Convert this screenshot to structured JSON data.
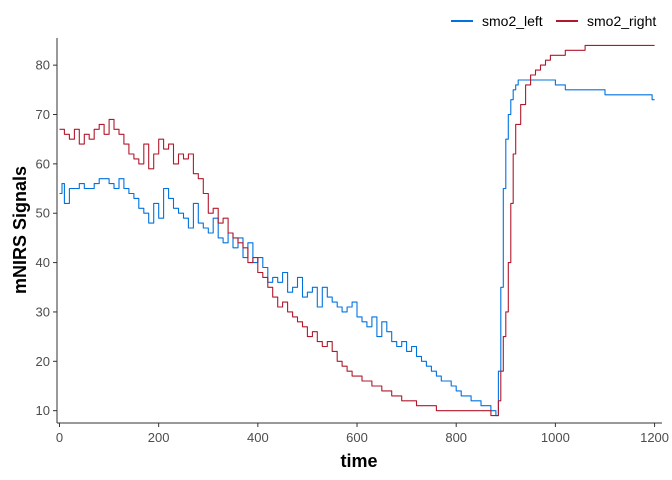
{
  "chart_data": {
    "type": "line",
    "title": "",
    "xlabel": "time",
    "ylabel": "mNIRS Signals",
    "xlim": [
      -5,
      1215
    ],
    "ylim": [
      7.5,
      85.5
    ],
    "x_ticks": [
      0,
      200,
      400,
      600,
      800,
      1000,
      1200
    ],
    "y_ticks": [
      10,
      20,
      30,
      40,
      50,
      60,
      70,
      80
    ],
    "grid": false,
    "legend_position": "top-right",
    "series": [
      {
        "name": "smo2_left",
        "color": "#0072e0",
        "x": [
          0,
          5,
          10,
          20,
          30,
          40,
          50,
          60,
          70,
          80,
          90,
          100,
          110,
          120,
          130,
          140,
          150,
          160,
          170,
          180,
          190,
          200,
          210,
          220,
          230,
          240,
          250,
          260,
          270,
          280,
          290,
          300,
          310,
          320,
          330,
          340,
          350,
          360,
          370,
          380,
          390,
          400,
          410,
          420,
          430,
          440,
          450,
          460,
          470,
          480,
          490,
          500,
          510,
          520,
          530,
          540,
          550,
          560,
          570,
          580,
          590,
          600,
          610,
          620,
          630,
          640,
          650,
          660,
          670,
          680,
          690,
          700,
          710,
          720,
          730,
          740,
          750,
          760,
          770,
          780,
          790,
          800,
          810,
          820,
          830,
          840,
          850,
          860,
          870,
          875,
          880,
          885,
          890,
          895,
          900,
          905,
          910,
          915,
          920,
          925,
          930,
          940,
          950,
          960,
          970,
          980,
          990,
          1000,
          1020,
          1040,
          1060,
          1080,
          1100,
          1120,
          1140,
          1160,
          1180,
          1190,
          1195,
          1200
        ],
        "values": [
          54,
          56,
          52,
          55,
          55,
          56,
          55,
          55,
          56,
          57,
          57,
          56,
          55,
          57,
          55,
          54,
          53,
          51,
          50,
          48,
          52,
          49,
          55,
          53,
          51,
          50,
          49,
          47,
          52,
          48,
          47,
          46,
          49,
          45,
          44,
          46,
          43,
          45,
          41,
          44,
          40,
          41,
          39,
          36,
          37,
          36,
          38,
          34,
          35,
          37,
          33,
          34,
          35,
          31,
          35,
          33,
          32,
          31,
          30,
          31,
          32,
          29,
          28,
          27,
          29,
          25,
          28,
          26,
          24,
          23,
          24,
          22,
          23,
          21,
          20,
          19,
          18,
          17,
          16,
          16,
          15,
          14,
          13,
          13,
          12,
          12,
          11,
          11,
          10,
          10,
          9,
          18,
          35,
          55,
          65,
          70,
          73,
          75,
          76,
          77,
          77,
          77,
          77,
          77,
          77,
          77,
          77,
          76,
          75,
          75,
          75,
          75,
          74,
          74,
          74,
          74,
          74,
          74,
          73,
          73
        ]
      },
      {
        "name": "smo2_right",
        "color": "#b2182b",
        "x": [
          0,
          10,
          20,
          30,
          40,
          50,
          60,
          70,
          80,
          90,
          100,
          110,
          120,
          130,
          140,
          150,
          160,
          170,
          180,
          190,
          200,
          210,
          220,
          230,
          240,
          250,
          260,
          270,
          280,
          290,
          300,
          310,
          320,
          330,
          340,
          350,
          360,
          370,
          380,
          390,
          400,
          410,
          420,
          430,
          440,
          450,
          460,
          470,
          480,
          490,
          500,
          510,
          520,
          530,
          540,
          550,
          560,
          570,
          580,
          590,
          600,
          610,
          620,
          630,
          640,
          650,
          660,
          670,
          680,
          690,
          700,
          710,
          720,
          730,
          740,
          750,
          760,
          770,
          780,
          790,
          800,
          810,
          820,
          830,
          840,
          850,
          860,
          870,
          880,
          885,
          890,
          895,
          900,
          905,
          910,
          915,
          920,
          930,
          940,
          950,
          960,
          970,
          980,
          990,
          1000,
          1020,
          1040,
          1060,
          1080,
          1100,
          1120,
          1140,
          1160,
          1180,
          1200
        ],
        "values": [
          67,
          66,
          65,
          67,
          64,
          66,
          65,
          67,
          68,
          66,
          69,
          67,
          66,
          64,
          62,
          61,
          60,
          64,
          59,
          62,
          65,
          63,
          64,
          60,
          62,
          61,
          62,
          58,
          57,
          54,
          50,
          51,
          48,
          49,
          46,
          45,
          44,
          43,
          40,
          41,
          38,
          37,
          35,
          33,
          31,
          32,
          30,
          29,
          28,
          27,
          25,
          26,
          24,
          23,
          24,
          22,
          20,
          19,
          18,
          17,
          17,
          16,
          16,
          15,
          15,
          14,
          14,
          13,
          13,
          12,
          12,
          12,
          11,
          11,
          11,
          11,
          10,
          10,
          10,
          10,
          10,
          10,
          10,
          10,
          10,
          10,
          10,
          9,
          9,
          12,
          18,
          25,
          30,
          40,
          52,
          62,
          68,
          72,
          76,
          78,
          79,
          80,
          81,
          82,
          82,
          83,
          83,
          84,
          84,
          84,
          84,
          84,
          84,
          84,
          84
        ]
      }
    ]
  }
}
